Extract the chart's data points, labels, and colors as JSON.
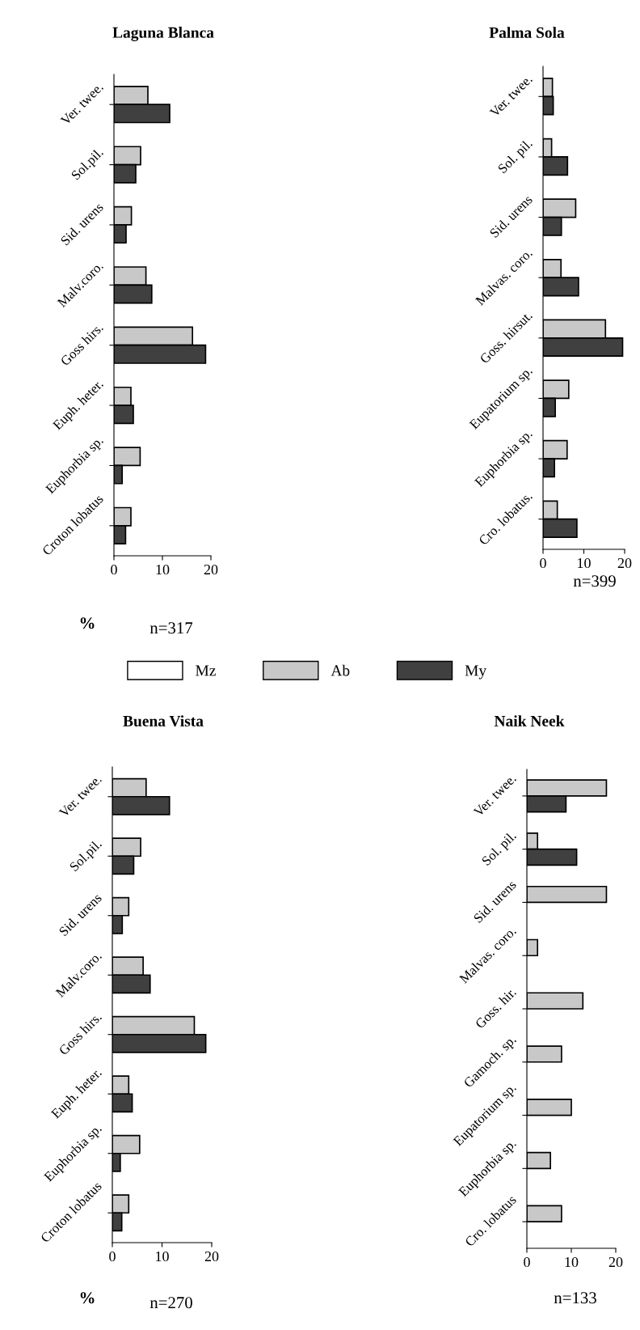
{
  "chart_data": [
    {
      "type": "bar",
      "orientation": "horizontal",
      "title": "Laguna Blanca",
      "xlabel": "%",
      "annotations": [
        "n=317"
      ],
      "legend": "bottom",
      "categories": [
        "Ver. twee.",
        "Sol.pil.",
        "Sid. urens",
        "Malv.coro.",
        "Goss hirs.",
        "Euph. heter.",
        "Euphorbia sp.",
        "Croton lobatus"
      ],
      "xlim": [
        0,
        20
      ],
      "xticks": [
        0,
        10,
        20
      ],
      "series": [
        {
          "name": "Mz",
          "color": "#ffffff",
          "values": [
            null,
            null,
            null,
            null,
            null,
            null,
            null,
            null
          ]
        },
        {
          "name": "Ab",
          "color": "#c8c8c8",
          "values": [
            7,
            5.5,
            3.6,
            6.6,
            16.2,
            3.5,
            5.4,
            3.5
          ]
        },
        {
          "name": "My",
          "color": "#404040",
          "values": [
            11.5,
            4.5,
            2.5,
            7.8,
            18.9,
            4,
            1.7,
            2.4
          ]
        }
      ]
    },
    {
      "type": "bar",
      "orientation": "horizontal",
      "title": "Palma Sola",
      "annotations": [
        "n=399"
      ],
      "categories": [
        "Ver. twee.",
        "Sol. pil.",
        "Sid. urens",
        "Malvas. coro.",
        "Goss. hirsut.",
        "Eupatorium sp.",
        "Euphorbia sp.",
        "Cro. lobatus."
      ],
      "xlim": [
        0,
        20
      ],
      "xticks": [
        0,
        10,
        20
      ],
      "series": [
        {
          "color": "#c8c8c8",
          "values": [
            2.3,
            2.1,
            8,
            4.4,
            15.3,
            6.3,
            5.9,
            3.5
          ]
        },
        {
          "color": "#404040",
          "values": [
            2.5,
            6,
            4.5,
            8.7,
            19.5,
            3,
            2.8,
            8.3
          ]
        }
      ]
    },
    {
      "type": "bar",
      "orientation": "horizontal",
      "title": "Buena Vista",
      "xlabel": "%",
      "annotations": [
        "n=270"
      ],
      "categories": [
        "Ver. twee.",
        "Sol.pil.",
        "Sid. urens",
        "Malv.coro.",
        "Goss hirs.",
        "Euph. heter.",
        "Euphorbia sp.",
        "Croton lobatus"
      ],
      "xlim": [
        0,
        20
      ],
      "xticks": [
        0,
        10,
        20
      ],
      "series": [
        {
          "color": "#c8c8c8",
          "values": [
            6.8,
            5.7,
            3.3,
            6.2,
            16.5,
            3.3,
            5.5,
            3.3
          ]
        },
        {
          "color": "#404040",
          "values": [
            11.5,
            4.3,
            2,
            7.6,
            18.8,
            4,
            1.6,
            1.9
          ]
        }
      ]
    },
    {
      "type": "bar",
      "orientation": "horizontal",
      "title": "Naik Neek",
      "annotations": [
        "n=133"
      ],
      "categories": [
        "Ver. twee.",
        "Sol. pil.",
        "Sid. urens",
        "Malvas. coro.",
        "Goss. hir.",
        "Gamoch. sp.",
        "Eupatorium sp.",
        "Euphorbia sp.",
        "Cro. lobatus"
      ],
      "xlim": [
        0,
        20
      ],
      "xticks": [
        0,
        10,
        20
      ],
      "series": [
        {
          "color": "#c8c8c8",
          "values": [
            17.9,
            2.4,
            17.9,
            2.4,
            12.6,
            7.8,
            10,
            5.3,
            7.8
          ]
        },
        {
          "color": "#404040",
          "values": [
            8.8,
            11.2,
            null,
            null,
            null,
            null,
            null,
            null,
            null
          ]
        }
      ]
    }
  ]
}
